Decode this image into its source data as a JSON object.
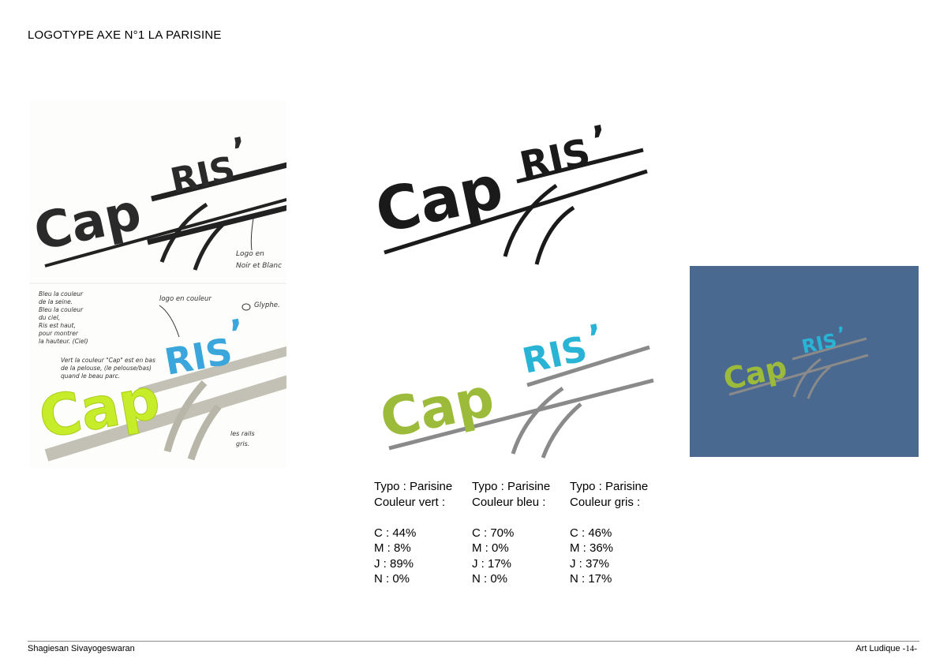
{
  "page": {
    "title": "LOGOTYPE AXE N°1 LA PARISINE"
  },
  "logo": {
    "cap": "Cap",
    "ris": "RIS",
    "apostrophe": "’",
    "colors": {
      "black": "#1a1a1a",
      "green": "#9dbb3a",
      "blue": "#29b4d6",
      "grey": "#8a8a8a",
      "panel_bg": "#4a6990",
      "sketch_green": "#c6ec2a",
      "sketch_blue": "#3aa6dc",
      "sketch_grey": "#b8b6a8"
    }
  },
  "sketch_notes": {
    "bw_note_1": "Logo en",
    "bw_note_2": "Noir et Blanc",
    "color_note": "logo en couleur",
    "glyph_note": "Glyphe.",
    "blue_note_1": "Bleu la couleur",
    "blue_note_2": "de la seine.",
    "blue_note_3": "Bleu la couleur",
    "blue_note_4": "du ciel,",
    "blue_note_5": "Ris est haut,",
    "blue_note_6": "pour montrer",
    "blue_note_7": "la hauteur. (Ciel)",
    "green_note_1": "Vert la couleur   \"Cap\" est en bas",
    "green_note_2": "de la pelouse,      (le pelouse/bas)",
    "green_note_3": "quand le beau parc.",
    "rails_note_1": "les rails",
    "rails_note_2": "gris."
  },
  "specs": [
    {
      "typo": "Typo : Parisine",
      "color": "Couleur vert :",
      "c": "C : 44%",
      "m": "M : 8%",
      "j": "J : 89%",
      "n": "N : 0%"
    },
    {
      "typo": "Typo : Parisine",
      "color": "Couleur bleu :",
      "c": "C : 70%",
      "m": "M : 0%",
      "j": "J : 17%",
      "n": "N : 0%"
    },
    {
      "typo": "Typo : Parisine",
      "color": "Couleur gris :",
      "c": "C : 46%",
      "m": "M : 36%",
      "j": "J : 37%",
      "n": "N : 17%"
    }
  ],
  "footer": {
    "author": "Shagiesan Sivayogeswaran",
    "course": "Art Ludique",
    "page_number": "-14-"
  }
}
